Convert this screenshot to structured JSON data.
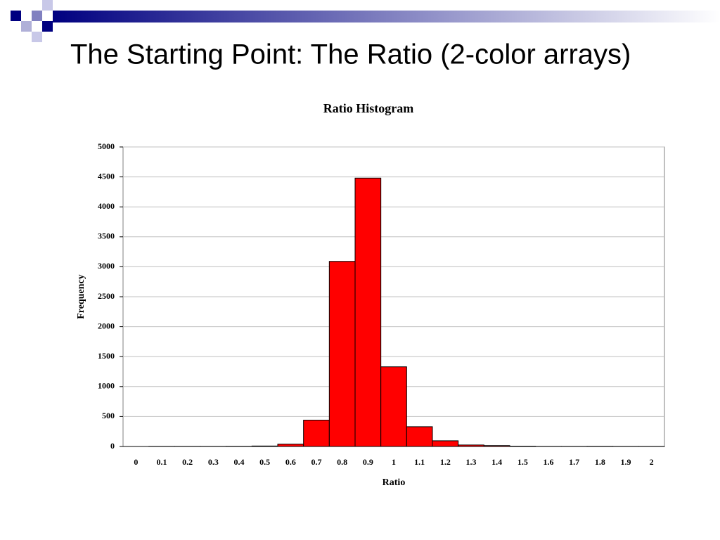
{
  "slide": {
    "title": "The Starting Point: The Ratio (2-color arrays)"
  },
  "chart_data": {
    "type": "bar",
    "title": "Ratio Histogram",
    "x_label": "Ratio",
    "y_label": "Frequency",
    "categories": [
      "0",
      "0.1",
      "0.2",
      "0.3",
      "0.4",
      "0.5",
      "0.6",
      "0.7",
      "0.8",
      "0.9",
      "1",
      "1.1",
      "1.2",
      "1.3",
      "1.4",
      "1.5",
      "1.6",
      "1.7",
      "1.8",
      "1.9",
      "2"
    ],
    "values": [
      0,
      2,
      2,
      2,
      3,
      8,
      40,
      440,
      3090,
      4480,
      1330,
      330,
      95,
      25,
      15,
      5,
      2,
      2,
      3,
      2,
      2
    ],
    "color": "#ff0000",
    "ylim": [
      0,
      5000
    ],
    "yticks": [
      0,
      500,
      1000,
      1500,
      2000,
      2500,
      3000,
      3500,
      4000,
      4500,
      5000
    ],
    "grid": true
  }
}
